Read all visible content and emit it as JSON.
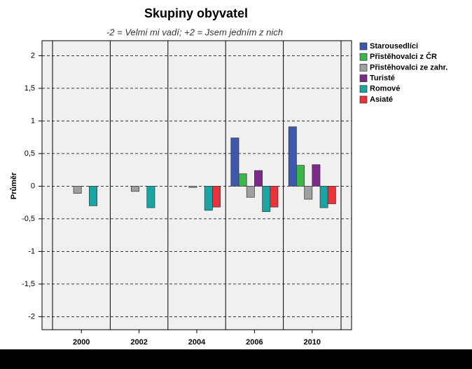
{
  "chart_data": {
    "type": "bar",
    "title": "Skupiny obyvatel",
    "subtitle": "-2 = Velmi mi vadí; +2 = Jsem jedním z nich",
    "y_label": "Průměr",
    "categories": [
      "2000",
      "2002",
      "2004",
      "2006",
      "2010"
    ],
    "series": [
      {
        "name": "Starousedlíci",
        "color": "#3e58ac",
        "values": [
          null,
          null,
          null,
          0.74,
          0.91
        ]
      },
      {
        "name": "Přistěhovalci z ČR",
        "color": "#3cb54a",
        "values": [
          null,
          null,
          null,
          0.19,
          0.32
        ]
      },
      {
        "name": "Přistěhovalci ze zahr.",
        "color": "#a0a0a0",
        "values": [
          -0.11,
          -0.08,
          -0.02,
          -0.17,
          -0.2
        ]
      },
      {
        "name": "Turisté",
        "color": "#7b2b87",
        "values": [
          null,
          null,
          null,
          0.24,
          0.33
        ]
      },
      {
        "name": "Romové",
        "color": "#1aa5a5",
        "values": [
          -0.3,
          -0.33,
          -0.37,
          -0.39,
          -0.33
        ]
      },
      {
        "name": "Asiaté",
        "color": "#e8333b",
        "values": [
          null,
          null,
          -0.32,
          -0.32,
          -0.27
        ]
      }
    ],
    "ylim": [
      -2.2,
      2.23
    ],
    "yticks": [
      2,
      {
        "value": 1.5,
        "label": "1,5"
      },
      1,
      {
        "value": 0.5,
        "label": "0,5"
      },
      0,
      {
        "value": -0.5,
        "label": "-0,5"
      },
      -1,
      {
        "value": -1.5,
        "label": "-1,5"
      },
      -2
    ],
    "grid": true
  }
}
